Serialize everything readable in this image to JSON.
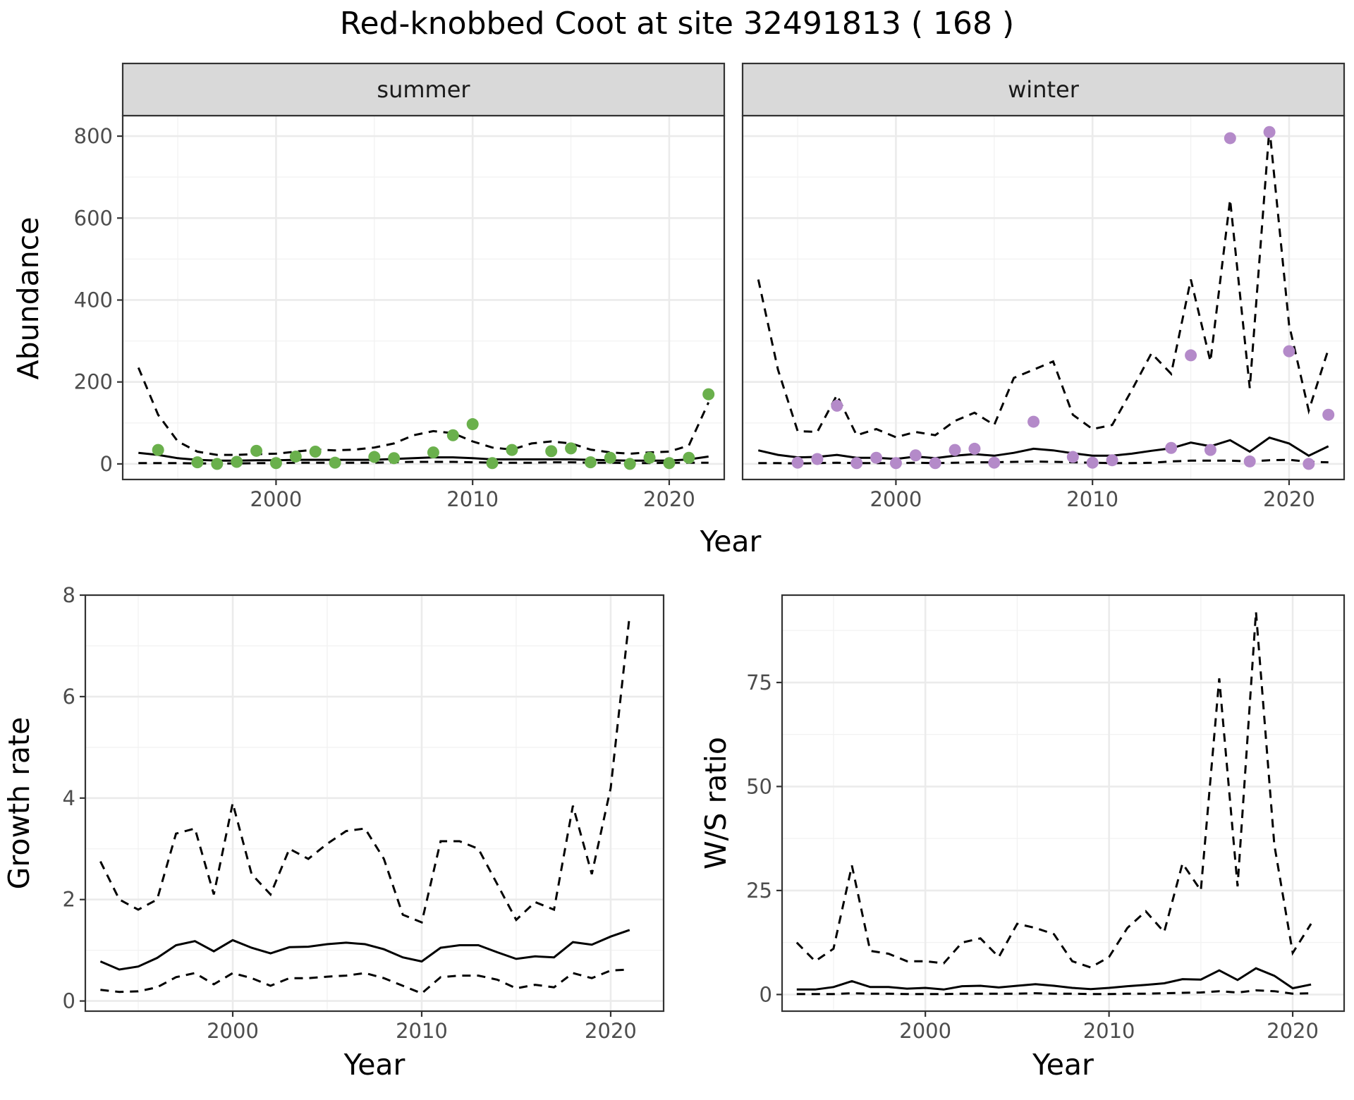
{
  "title": "Red-knobbed Coot at site 32491813 ( 168 )",
  "colors": {
    "summer_points": "#6ab04c",
    "winter_points": "#b48ac9",
    "lines": "#000000"
  },
  "chart_data": [
    {
      "type": "line",
      "facet": "summer",
      "xlabel": "Year",
      "ylabel": "Abundance",
      "xlim": [
        1992.2,
        2022.8
      ],
      "ylim": [
        -38,
        850
      ],
      "xticks": [
        2000,
        2010,
        2020
      ],
      "yticks": [
        0,
        200,
        400,
        600,
        800
      ],
      "series": [
        {
          "role": "lower",
          "x": [
            1993,
            1994,
            1995,
            1996,
            1997,
            1998,
            1999,
            2000,
            2001,
            2002,
            2003,
            2004,
            2005,
            2006,
            2007,
            2008,
            2009,
            2010,
            2011,
            2012,
            2013,
            2014,
            2015,
            2016,
            2017,
            2018,
            2019,
            2020,
            2021,
            2022
          ],
          "values": [
            2,
            2,
            2,
            1,
            1,
            1,
            2,
            2,
            3,
            3,
            3,
            3,
            3,
            4,
            5,
            5,
            5,
            4,
            3,
            3,
            3,
            4,
            4,
            3,
            3,
            2,
            2,
            3,
            3,
            3
          ]
        },
        {
          "role": "estimate",
          "x": [
            1993,
            1994,
            1995,
            1996,
            1997,
            1998,
            1999,
            2000,
            2001,
            2002,
            2003,
            2004,
            2005,
            2006,
            2007,
            2008,
            2009,
            2010,
            2011,
            2012,
            2013,
            2014,
            2015,
            2016,
            2017,
            2018,
            2019,
            2020,
            2021,
            2022
          ],
          "values": [
            27,
            22,
            14,
            10,
            8,
            8,
            9,
            9,
            10,
            10,
            10,
            10,
            10,
            12,
            14,
            16,
            16,
            14,
            11,
            11,
            11,
            11,
            11,
            10,
            9,
            8,
            8,
            8,
            11,
            18
          ]
        },
        {
          "role": "upper",
          "x": [
            1993,
            1994,
            1995,
            1996,
            1997,
            1998,
            1999,
            2000,
            2001,
            2002,
            2003,
            2004,
            2005,
            2006,
            2007,
            2008,
            2009,
            2010,
            2011,
            2012,
            2013,
            2014,
            2015,
            2016,
            2017,
            2018,
            2019,
            2020,
            2021,
            2022
          ],
          "values": [
            235,
            120,
            55,
            30,
            22,
            22,
            24,
            25,
            30,
            35,
            33,
            35,
            40,
            50,
            70,
            80,
            75,
            55,
            40,
            35,
            50,
            55,
            50,
            35,
            28,
            25,
            28,
            30,
            45,
            150
          ]
        },
        {
          "role": "observed",
          "x": [
            1994,
            1996,
            1997,
            1998,
            1999,
            2000,
            2001,
            2002,
            2003,
            2005,
            2006,
            2008,
            2009,
            2010,
            2011,
            2012,
            2014,
            2015,
            2016,
            2017,
            2018,
            2019,
            2020,
            2021,
            2022
          ],
          "values": [
            34,
            4,
            0,
            5,
            32,
            2,
            18,
            30,
            3,
            17,
            14,
            28,
            70,
            97,
            2,
            34,
            31,
            38,
            4,
            15,
            0,
            15,
            2,
            15,
            170
          ]
        }
      ]
    },
    {
      "type": "line",
      "facet": "winter",
      "xlabel": "Year",
      "ylabel": "Abundance",
      "xlim": [
        1992.2,
        2022.8
      ],
      "ylim": [
        -38,
        850
      ],
      "xticks": [
        2000,
        2010,
        2020
      ],
      "yticks": [
        0,
        200,
        400,
        600,
        800
      ],
      "series": [
        {
          "role": "lower",
          "x": [
            1993,
            1994,
            1995,
            1996,
            1997,
            1998,
            1999,
            2000,
            2001,
            2002,
            2003,
            2004,
            2005,
            2006,
            2007,
            2008,
            2009,
            2010,
            2011,
            2012,
            2013,
            2014,
            2015,
            2016,
            2017,
            2018,
            2019,
            2020,
            2021,
            2022
          ],
          "values": [
            2,
            2,
            1,
            2,
            3,
            2,
            2,
            2,
            3,
            2,
            3,
            4,
            4,
            5,
            6,
            5,
            4,
            3,
            2,
            2,
            3,
            6,
            8,
            8,
            8,
            6,
            9,
            10,
            5,
            4
          ]
        },
        {
          "role": "estimate",
          "x": [
            1993,
            1994,
            1995,
            1996,
            1997,
            1998,
            1999,
            2000,
            2001,
            2002,
            2003,
            2004,
            2005,
            2006,
            2007,
            2008,
            2009,
            2010,
            2011,
            2012,
            2013,
            2014,
            2015,
            2016,
            2017,
            2018,
            2019,
            2020,
            2021,
            2022
          ],
          "values": [
            33,
            22,
            16,
            17,
            22,
            15,
            15,
            12,
            18,
            14,
            20,
            24,
            20,
            27,
            37,
            33,
            26,
            20,
            20,
            25,
            32,
            38,
            52,
            43,
            58,
            30,
            64,
            50,
            20,
            43
          ]
        },
        {
          "role": "upper",
          "x": [
            1993,
            1994,
            1995,
            1996,
            1997,
            1998,
            1999,
            2000,
            2001,
            2002,
            2003,
            2004,
            2005,
            2006,
            2007,
            2008,
            2009,
            2010,
            2011,
            2012,
            2013,
            2014,
            2015,
            2016,
            2017,
            2018,
            2019,
            2020,
            2021,
            2022
          ],
          "values": [
            450,
            230,
            80,
            78,
            168,
            70,
            85,
            65,
            78,
            70,
            105,
            125,
            95,
            210,
            230,
            250,
            120,
            85,
            95,
            180,
            270,
            220,
            450,
            250,
            645,
            185,
            820,
            340,
            130,
            280
          ]
        },
        {
          "role": "observed",
          "x": [
            1995,
            1996,
            1997,
            1998,
            1999,
            2000,
            2001,
            2002,
            2003,
            2004,
            2005,
            2007,
            2009,
            2010,
            2011,
            2014,
            2015,
            2016,
            2017,
            2018,
            2019,
            2020,
            2021,
            2022
          ],
          "values": [
            3,
            12,
            142,
            2,
            15,
            2,
            21,
            2,
            34,
            37,
            3,
            103,
            17,
            3,
            9,
            39,
            265,
            34,
            795,
            6,
            810,
            275,
            0,
            120
          ]
        }
      ]
    },
    {
      "type": "line",
      "xlabel": "Year",
      "ylabel": "Growth rate",
      "xlim": [
        1992.2,
        2022.8
      ],
      "ylim": [
        -0.2,
        8
      ],
      "xticks": [
        2000,
        2010,
        2020
      ],
      "yticks": [
        0,
        2,
        4,
        6,
        8
      ],
      "series": [
        {
          "role": "lower",
          "x": [
            1993,
            1994,
            1995,
            1996,
            1997,
            1998,
            1999,
            2000,
            2001,
            2002,
            2003,
            2004,
            2005,
            2006,
            2007,
            2008,
            2009,
            2010,
            2011,
            2012,
            2013,
            2014,
            2015,
            2016,
            2017,
            2018,
            2019,
            2020,
            2021
          ],
          "values": [
            0.22,
            0.18,
            0.19,
            0.27,
            0.47,
            0.55,
            0.33,
            0.55,
            0.45,
            0.3,
            0.45,
            0.45,
            0.48,
            0.5,
            0.55,
            0.45,
            0.3,
            0.15,
            0.47,
            0.5,
            0.5,
            0.42,
            0.25,
            0.32,
            0.27,
            0.55,
            0.45,
            0.6,
            0.62
          ]
        },
        {
          "role": "estimate",
          "x": [
            1993,
            1994,
            1995,
            1996,
            1997,
            1998,
            1999,
            2000,
            2001,
            2002,
            2003,
            2004,
            2005,
            2006,
            2007,
            2008,
            2009,
            2010,
            2011,
            2012,
            2013,
            2014,
            2015,
            2016,
            2017,
            2018,
            2019,
            2020,
            2021
          ],
          "values": [
            0.78,
            0.62,
            0.68,
            0.85,
            1.1,
            1.18,
            0.98,
            1.2,
            1.05,
            0.94,
            1.06,
            1.07,
            1.12,
            1.15,
            1.12,
            1.02,
            0.86,
            0.78,
            1.05,
            1.1,
            1.1,
            0.96,
            0.83,
            0.88,
            0.86,
            1.16,
            1.11,
            1.27,
            1.4
          ]
        },
        {
          "role": "upper",
          "x": [
            1993,
            1994,
            1995,
            1996,
            1997,
            1998,
            1999,
            2000,
            2001,
            2002,
            2003,
            2004,
            2005,
            2006,
            2007,
            2008,
            2009,
            2010,
            2011,
            2012,
            2013,
            2014,
            2015,
            2016,
            2017,
            2018,
            2019,
            2020,
            2021
          ],
          "values": [
            2.75,
            2.0,
            1.8,
            2.0,
            3.3,
            3.4,
            2.1,
            3.9,
            2.5,
            2.1,
            3.0,
            2.8,
            3.1,
            3.35,
            3.4,
            2.8,
            1.7,
            1.55,
            3.15,
            3.15,
            3.0,
            2.3,
            1.6,
            1.95,
            1.8,
            3.85,
            2.5,
            4.2,
            7.6
          ]
        }
      ]
    },
    {
      "type": "line",
      "xlabel": "Year",
      "ylabel": "W/S ratio",
      "xlim": [
        1992.2,
        2022.8
      ],
      "ylim": [
        -4,
        96
      ],
      "xticks": [
        2000,
        2010,
        2020
      ],
      "yticks": [
        0,
        25,
        50,
        75
      ],
      "series": [
        {
          "role": "lower",
          "x": [
            1993,
            1994,
            1995,
            1996,
            1997,
            1998,
            1999,
            2000,
            2001,
            2002,
            2003,
            2004,
            2005,
            2006,
            2007,
            2008,
            2009,
            2010,
            2011,
            2012,
            2013,
            2014,
            2015,
            2016,
            2017,
            2018,
            2019,
            2020,
            2021
          ],
          "values": [
            0.1,
            0.1,
            0.1,
            0.3,
            0.2,
            0.2,
            0.1,
            0.1,
            0.1,
            0.2,
            0.2,
            0.2,
            0.2,
            0.3,
            0.2,
            0.2,
            0.1,
            0.1,
            0.2,
            0.2,
            0.3,
            0.4,
            0.5,
            0.8,
            0.5,
            1.0,
            0.8,
            0.2,
            0.3
          ]
        },
        {
          "role": "estimate",
          "x": [
            1993,
            1994,
            1995,
            1996,
            1997,
            1998,
            1999,
            2000,
            2001,
            2002,
            2003,
            2004,
            2005,
            2006,
            2007,
            2008,
            2009,
            2010,
            2011,
            2012,
            2013,
            2014,
            2015,
            2016,
            2017,
            2018,
            2019,
            2020,
            2021
          ],
          "values": [
            1.2,
            1.2,
            1.8,
            3.2,
            1.8,
            1.8,
            1.4,
            1.6,
            1.2,
            2.0,
            2.1,
            1.7,
            2.1,
            2.5,
            2.1,
            1.6,
            1.3,
            1.6,
            2.0,
            2.3,
            2.7,
            3.7,
            3.6,
            5.8,
            3.5,
            6.3,
            4.5,
            1.5,
            2.4
          ]
        },
        {
          "role": "upper",
          "x": [
            1993,
            1994,
            1995,
            1996,
            1997,
            1998,
            1999,
            2000,
            2001,
            2002,
            2003,
            2004,
            2005,
            2006,
            2007,
            2008,
            2009,
            2010,
            2011,
            2012,
            2013,
            2014,
            2015,
            2016,
            2017,
            2018,
            2019,
            2020,
            2021
          ],
          "values": [
            12.5,
            8.0,
            11.0,
            31.0,
            10.5,
            9.8,
            8.0,
            8.0,
            7.5,
            12.5,
            13.5,
            9.0,
            17.0,
            16.0,
            14.5,
            8.0,
            6.5,
            9.0,
            16.0,
            20.0,
            15.0,
            31.5,
            25.0,
            76.0,
            26.0,
            92.0,
            36.0,
            10.0,
            17.0
          ]
        }
      ]
    }
  ]
}
